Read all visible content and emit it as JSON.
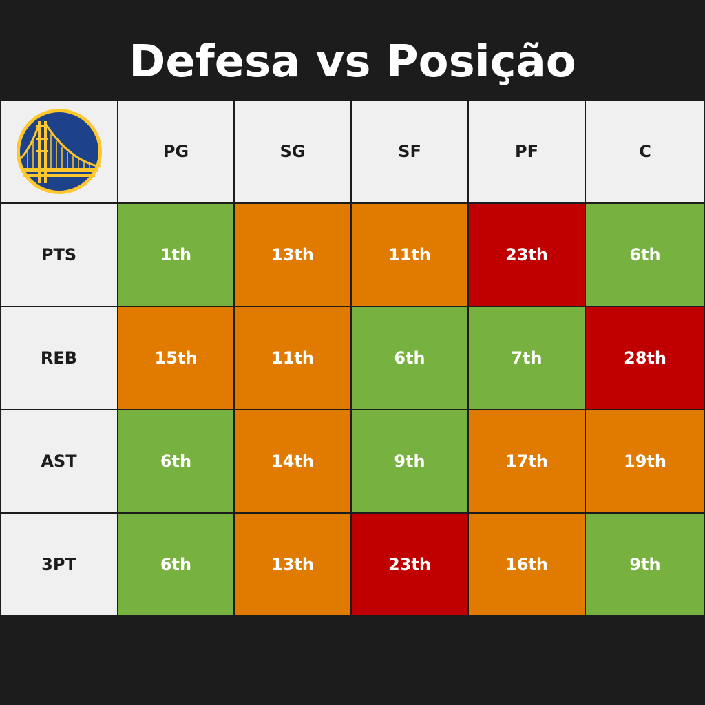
{
  "title": "Defesa vs Posição",
  "logo": {
    "icon": "golden-state-warriors-bridge-logo",
    "colors": {
      "primary": "#1d428a",
      "secondary": "#ffc72c"
    }
  },
  "colors": {
    "background": "#1c1c1c",
    "header_bg": "#f0f0f0",
    "good": "#77b140",
    "medium": "#e07b00",
    "bad": "#c00000"
  },
  "chart_data": {
    "type": "table",
    "columns": [
      "PG",
      "SG",
      "SF",
      "PF",
      "C"
    ],
    "rows": [
      {
        "label": "PTS",
        "values": [
          "1th",
          "13th",
          "11th",
          "23th",
          "6th"
        ],
        "levels": [
          "good",
          "medium",
          "medium",
          "bad",
          "good"
        ]
      },
      {
        "label": "REB",
        "values": [
          "15th",
          "11th",
          "6th",
          "7th",
          "28th"
        ],
        "levels": [
          "medium",
          "medium",
          "good",
          "good",
          "bad"
        ]
      },
      {
        "label": "AST",
        "values": [
          "6th",
          "14th",
          "9th",
          "17th",
          "19th"
        ],
        "levels": [
          "good",
          "medium",
          "good",
          "medium",
          "medium"
        ]
      },
      {
        "label": "3PT",
        "values": [
          "6th",
          "13th",
          "23th",
          "16th",
          "9th"
        ],
        "levels": [
          "good",
          "medium",
          "bad",
          "medium",
          "good"
        ]
      }
    ]
  }
}
